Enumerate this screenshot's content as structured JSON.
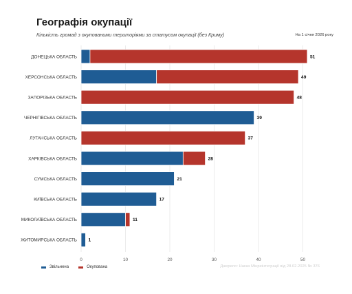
{
  "header": {
    "title": "Географія окупації",
    "subtitle": "Кількість громад з окупованими територіями за статусом окупації (без Криму)",
    "date_note": "На 1 січня 2026 року"
  },
  "legend": {
    "items": [
      {
        "label": "Звільнена",
        "color": "#1f5c94"
      },
      {
        "label": "Окупована",
        "color": "#b5352c"
      }
    ]
  },
  "source": "Джерело: Наказ Мінреінтеграції від 28.02.2025 № 376",
  "colors": {
    "liberated": "#1f5c94",
    "occupied": "#b5352c"
  },
  "chart_data": {
    "type": "bar",
    "orientation": "horizontal",
    "stacked": true,
    "categories": [
      "ДОНЕЦЬКА ОБЛАСТЬ",
      "ХЕРСОНСЬКА ОБЛАСТЬ",
      "ЗАПОРІЗЬКА ОБЛАСТЬ",
      "ЧЕРНІГІВСЬКА ОБЛАСТЬ",
      "ЛУГАНСЬКА ОБЛАСТЬ",
      "ХАРКІВСЬКА ОБЛАСТЬ",
      "СУМСЬКА ОБЛАСТЬ",
      "КИЇВСЬКА ОБЛАСТЬ",
      "МИКОЛАЇВСЬКА ОБЛАСТЬ",
      "ЖИТОМИРСЬКА ОБЛАСТЬ"
    ],
    "series": [
      {
        "name": "Звільнена",
        "values": [
          2,
          17,
          0,
          39,
          0,
          23,
          21,
          17,
          10,
          1
        ]
      },
      {
        "name": "Окупована",
        "values": [
          49,
          32,
          48,
          0,
          37,
          5,
          0,
          0,
          1,
          0
        ]
      }
    ],
    "totals": [
      51,
      49,
      48,
      39,
      37,
      28,
      21,
      17,
      11,
      1
    ],
    "xlim": [
      0,
      51
    ],
    "xticks": [
      0,
      10,
      20,
      30,
      40,
      50
    ],
    "grid": true,
    "legend_position": "bottom-left"
  }
}
